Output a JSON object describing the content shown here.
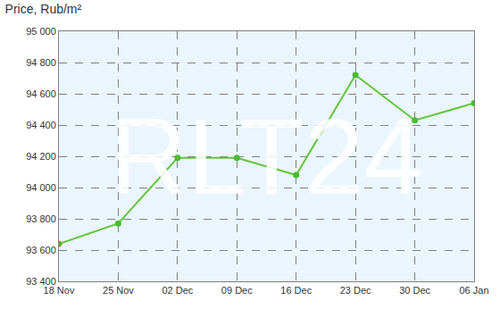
{
  "chart_data": {
    "type": "line",
    "title": "Price, Rub/m²",
    "categories": [
      "18 Nov",
      "25 Nov",
      "02 Dec",
      "09 Dec",
      "16 Dec",
      "23 Dec",
      "30 Dec",
      "06 Jan"
    ],
    "values": [
      93640,
      93770,
      94190,
      94190,
      94080,
      94720,
      94430,
      94540
    ],
    "color": "#66c43a",
    "marker": "circle",
    "ylim": [
      93400,
      95000
    ],
    "yticks": [
      {
        "value": 93400,
        "label": "93 400"
      },
      {
        "value": 93600,
        "label": "93 600"
      },
      {
        "value": 93800,
        "label": "93 800"
      },
      {
        "value": 94000,
        "label": "94 000"
      },
      {
        "value": 94200,
        "label": "94 200"
      },
      {
        "value": 94400,
        "label": "94 400"
      },
      {
        "value": 94600,
        "label": "94 600"
      },
      {
        "value": 94800,
        "label": "94 800"
      },
      {
        "value": 95000,
        "label": "95 000"
      }
    ],
    "grid": true,
    "annotations": [
      "RLT24"
    ]
  }
}
